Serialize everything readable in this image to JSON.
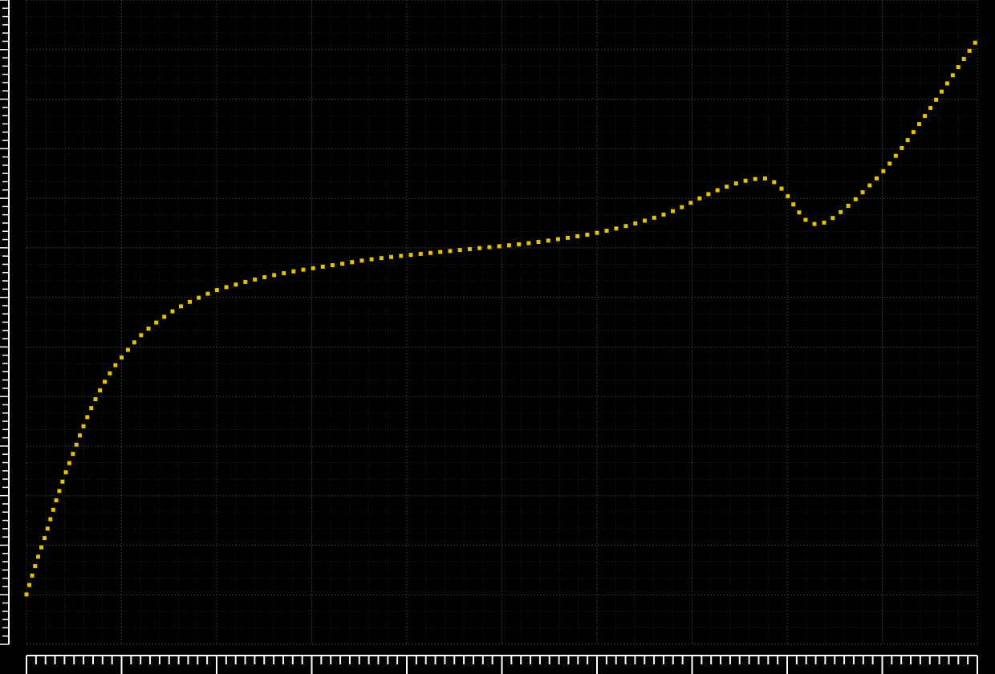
{
  "colors": {
    "background": "#000000",
    "series": "#e6c100",
    "grid": "#3a3a3a",
    "axis": "#ffffff"
  },
  "chart_data": {
    "type": "scatter",
    "title": "",
    "xlabel": "",
    "ylabel": "",
    "grid": true,
    "marker": "dotted-line",
    "xlim": [
      0,
      100
    ],
    "ylim": [
      0,
      100
    ],
    "series": [
      {
        "x": [
          0,
          1,
          2,
          3,
          4,
          5,
          6,
          7,
          8,
          9,
          10,
          12,
          14,
          16,
          18,
          20,
          22,
          24,
          26,
          28,
          30,
          33,
          36,
          40,
          44,
          48,
          52,
          56,
          60,
          64,
          68,
          72,
          75,
          77,
          78,
          79,
          80,
          81,
          82,
          83,
          84,
          85,
          86,
          87,
          88,
          90,
          92,
          94,
          96,
          98,
          100
        ],
        "y": [
          8,
          13,
          17.5,
          22.5,
          27,
          31,
          35,
          38.5,
          41.5,
          44,
          46,
          49.5,
          52,
          54,
          55.5,
          56.8,
          57.7,
          58.5,
          59.2,
          59.8,
          60.3,
          61,
          61.7,
          62.4,
          63,
          63.6,
          64.2,
          65,
          66,
          67.5,
          69.5,
          72.4,
          74.1,
          74.7,
          74.6,
          73.7,
          72,
          69.8,
          68,
          67.4,
          67.7,
          68.6,
          69.8,
          71.1,
          72.6,
          75.7,
          79.5,
          83.7,
          88.1,
          92.6,
          97
        ]
      }
    ]
  }
}
